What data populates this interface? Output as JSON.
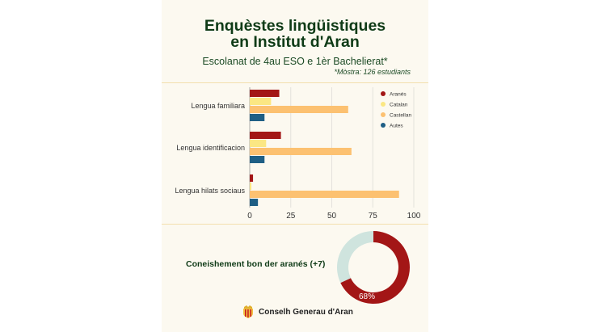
{
  "header": {
    "title_line1": "Enquèstes lingüistiques",
    "title_line2": "en Institut d'Aran",
    "subtitle": "Escolanat de 4au ESO e 1èr Bachelierat*",
    "sample_note": "*Mòstra: 126 estudiants"
  },
  "chart_data": [
    {
      "type": "bar",
      "orientation": "horizontal",
      "categories": [
        "Lengua familiara",
        "Lengua identificacion",
        "Lengua hilats sociaus"
      ],
      "series": [
        {
          "name": "Aranés",
          "color": "#a31616",
          "values": [
            18,
            19,
            2
          ]
        },
        {
          "name": "Catalan",
          "color": "#fbe783",
          "values": [
            13,
            10,
            1
          ]
        },
        {
          "name": "Castellan",
          "color": "#fcc171",
          "values": [
            60,
            62,
            91
          ]
        },
        {
          "name": "Autes",
          "color": "#1f5f85",
          "values": [
            9,
            9,
            5
          ]
        }
      ],
      "xticks": [
        "0",
        "25",
        "50",
        "75",
        "100"
      ],
      "xlim": [
        0,
        100
      ],
      "grid": true,
      "legend": "top-right"
    },
    {
      "type": "pie",
      "donut": true,
      "label": "Coneishement bon der aranés (+7)",
      "slices": [
        {
          "value": 68,
          "color": "#a31616",
          "label": "68%"
        },
        {
          "value": 32,
          "color": "#cfe4de",
          "label": ""
        }
      ]
    }
  ],
  "footer": {
    "org": "Conselh Generau d'Aran",
    "logo_icon": "coat-of-arms-icon"
  }
}
